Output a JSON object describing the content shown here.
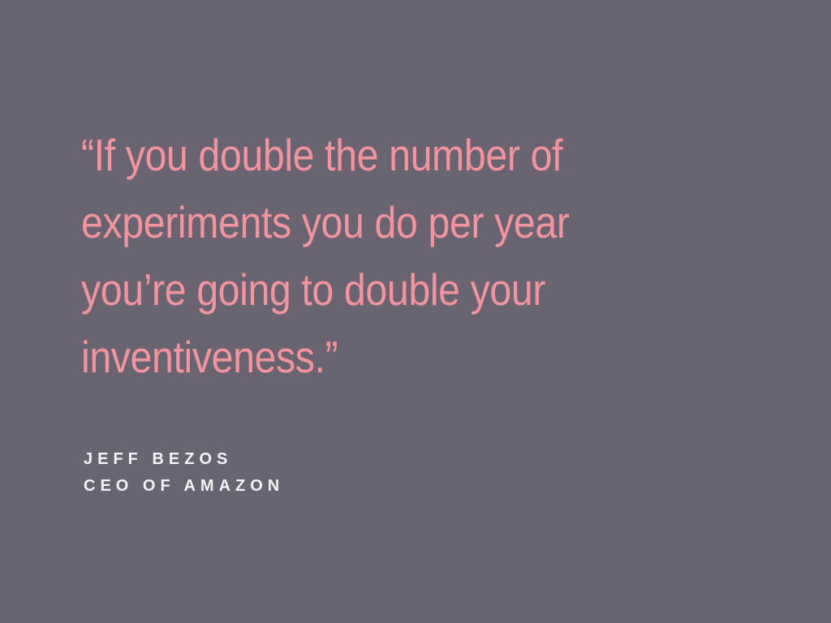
{
  "slide": {
    "background_color": "#686471",
    "quote": {
      "color": "#f4939e",
      "full_text": "“If you double the number of experiments you do per year you’re going to double your inventiveness.”",
      "lines": [
        "“If you double the number of",
        "experiments you do per year",
        "you’re going to double your",
        "inventiveness.”"
      ]
    },
    "attribution": {
      "color": "#f3f2f5",
      "name": "JEFF BEZOS",
      "title": "CEO OF AMAZON"
    }
  }
}
